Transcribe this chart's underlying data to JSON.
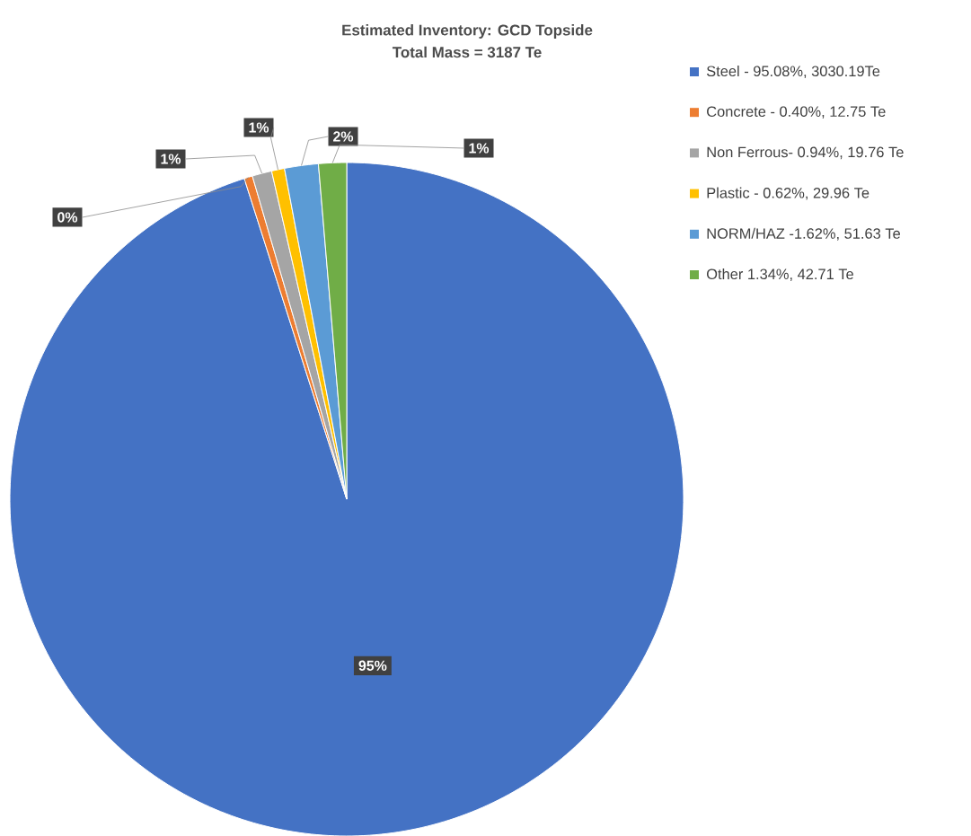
{
  "chart_data": {
    "type": "pie",
    "title": "Estimated Inventory: GCD Topside",
    "subtitle": "Total Mass = 3187 Te",
    "categories": [
      "Steel - 95.08%, 3030.19Te",
      "Concrete - 0.40%, 12.75 Te",
      "Non Ferrous- 0.94%, 19.76 Te",
      "Plastic - 0.62%, 29.96 Te",
      "NORM/HAZ -1.62%, 51.63 Te",
      "Other 1.34%, 42.71 Te"
    ],
    "values": [
      95.08,
      0.4,
      0.94,
      0.62,
      1.62,
      1.34
    ],
    "colors": [
      "#4472c4",
      "#ed7d31",
      "#a5a5a5",
      "#ffc000",
      "#5b9bd5",
      "#70ad47"
    ],
    "value_labels": [
      "95%",
      "0%",
      "1%",
      "1%",
      "2%",
      "1%"
    ],
    "legend": "top right"
  }
}
